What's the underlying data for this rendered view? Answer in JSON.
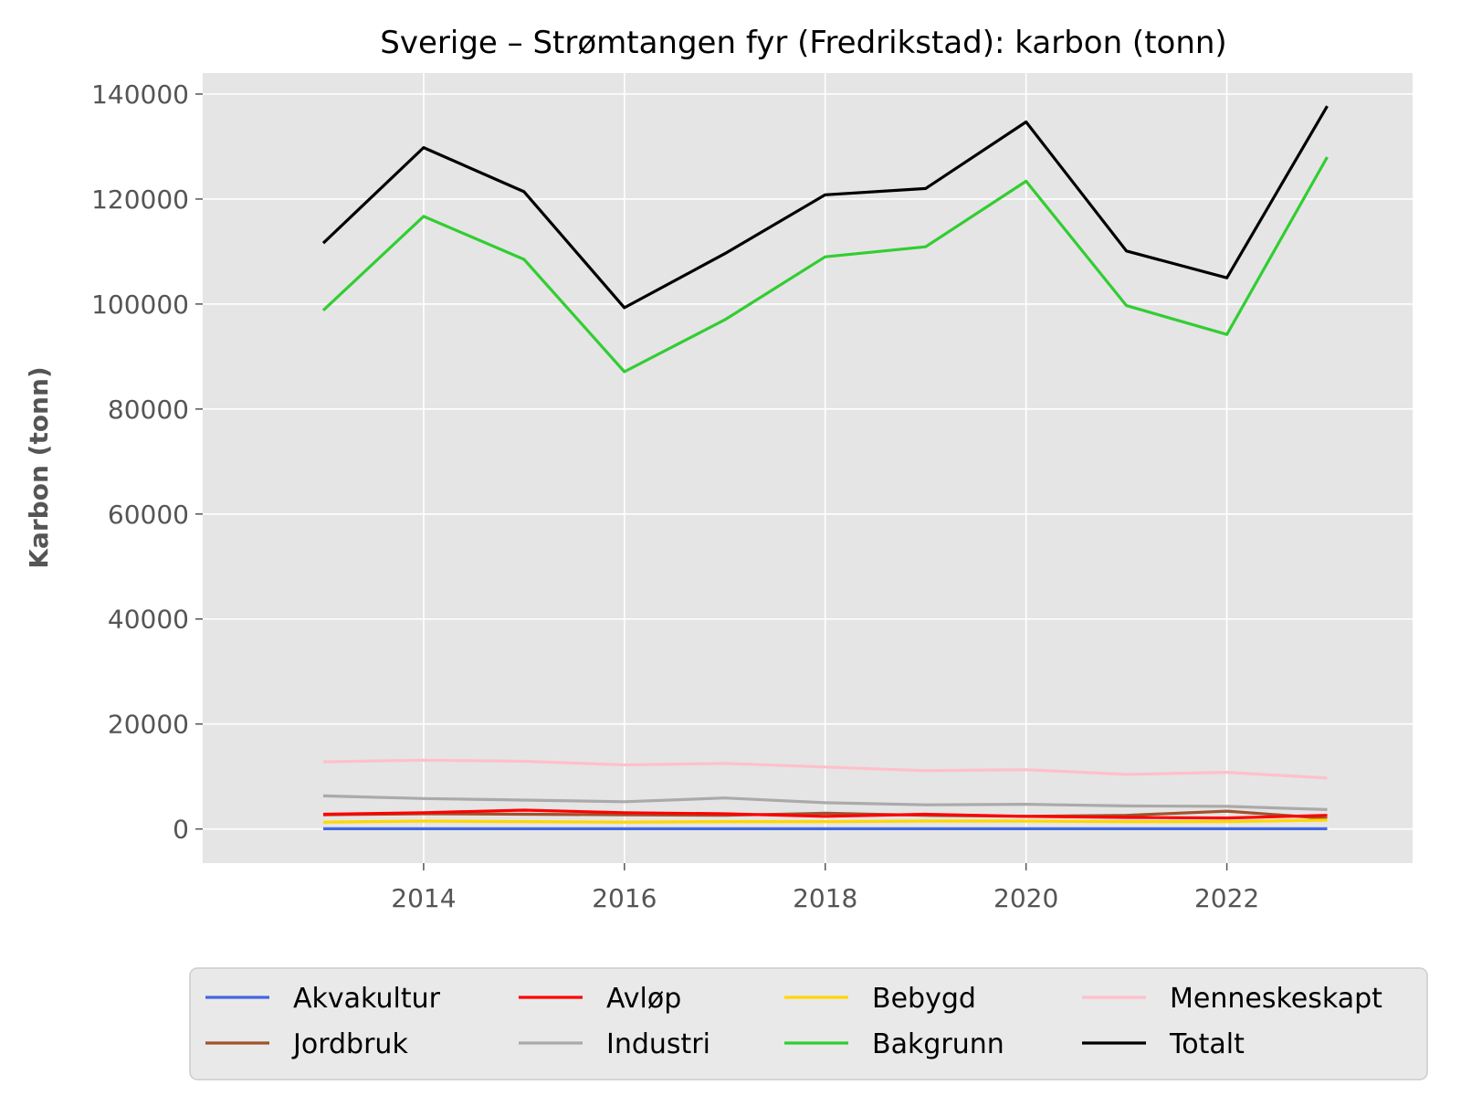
{
  "chart_data": {
    "type": "line",
    "title": "Sverige – Strømtangen fyr (Fredrikstad): karbon (tonn)",
    "xlabel": "",
    "ylabel": "Karbon (tonn)",
    "x": [
      2013,
      2014,
      2015,
      2016,
      2017,
      2018,
      2019,
      2020,
      2021,
      2022,
      2023
    ],
    "xlim": [
      2011.8,
      2023.85
    ],
    "ylim": [
      -6500,
      144000
    ],
    "xticks": [
      2014,
      2016,
      2018,
      2020,
      2022
    ],
    "yticks": [
      0,
      20000,
      40000,
      60000,
      80000,
      100000,
      120000,
      140000
    ],
    "grid": true,
    "legend_position": "bottom",
    "series": [
      {
        "name": "Akvakultur",
        "color": "#4169e1",
        "values": [
          50,
          50,
          50,
          50,
          50,
          50,
          50,
          50,
          50,
          50,
          50
        ]
      },
      {
        "name": "Jordbruk",
        "color": "#a0522d",
        "values": [
          2700,
          2900,
          2800,
          2700,
          2600,
          3000,
          2600,
          2400,
          2600,
          3400,
          2000
        ]
      },
      {
        "name": "Avløp",
        "color": "#ff0000",
        "values": [
          2800,
          3100,
          3600,
          3100,
          2900,
          2400,
          2800,
          2400,
          2200,
          2100,
          2600
        ]
      },
      {
        "name": "Industri",
        "color": "#aaaaaa",
        "values": [
          6300,
          5800,
          5500,
          5200,
          5900,
          5000,
          4600,
          4700,
          4400,
          4300,
          3700
        ]
      },
      {
        "name": "Bebygd",
        "color": "#ffd700",
        "values": [
          1300,
          1500,
          1400,
          1300,
          1400,
          1400,
          1500,
          1500,
          1400,
          1400,
          1700
        ]
      },
      {
        "name": "Bakgrunn",
        "color": "#32cd32",
        "values": [
          98800,
          116700,
          108500,
          87100,
          97000,
          109000,
          110900,
          123400,
          99700,
          94200,
          128000
        ]
      },
      {
        "name": "Menneskeskapt",
        "color": "#ffc0cb",
        "values": [
          12800,
          13100,
          12900,
          12200,
          12500,
          11800,
          11100,
          11300,
          10400,
          10800,
          9700
        ]
      },
      {
        "name": "Totalt",
        "color": "#000000",
        "values": [
          111600,
          129800,
          121400,
          99300,
          109600,
          120800,
          122000,
          134700,
          110100,
          105000,
          137700
        ]
      }
    ]
  }
}
